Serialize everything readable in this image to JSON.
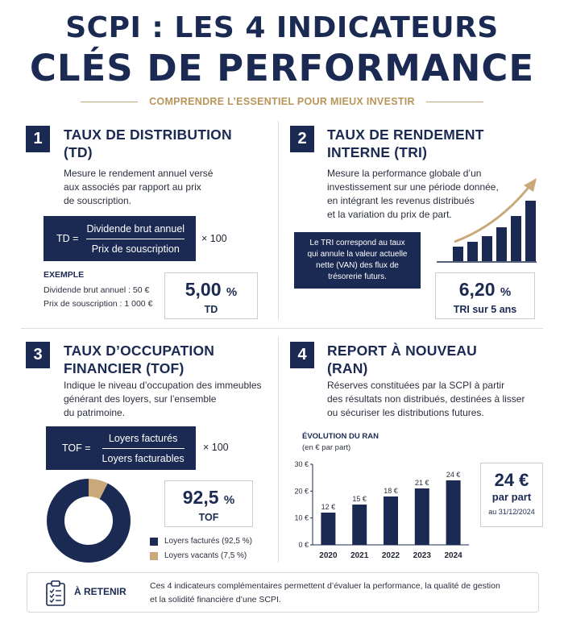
{
  "header": {
    "title_line1": "SCPI : LES 4 INDICATEURS",
    "title_line2": "CLÉS DE PERFORMANCE",
    "subtitle": "COMPRENDRE L’ESSENTIEL POUR MIEUX INVESTIR"
  },
  "colors": {
    "navy": "#1b2a52",
    "gold": "#c4a774",
    "occupied": "#1b2a52",
    "vacant": "#c9a97a"
  },
  "td": {
    "number": "1",
    "title_line1": "TAUX DE DISTRIBUTION",
    "title_line2": "(TD)",
    "desc_line1": "Mesure le rendement annuel versé",
    "desc_line2": "aux associés par rapport au prix",
    "desc_line3": "de souscription.",
    "formula_lhs": "TD =",
    "formula_num": "Dividende brut annuel",
    "formula_den": "Prix de souscription",
    "formula_times": "× 100",
    "example_title": "EXEMPLE",
    "example_line1": "Dividende brut annuel : 50 €",
    "example_line2": "Prix de souscription : 1 000 €",
    "value": "5,00",
    "unit": "%",
    "value_label": "TD"
  },
  "tri": {
    "number": "2",
    "title_line1": "TAUX DE RENDEMENT",
    "title_line2": "INTERNE (TRI)",
    "desc_line1": "Mesure la performance globale d’un",
    "desc_line2": "investissement sur une période donnée,",
    "desc_line3": "en intégrant les revenus distribués",
    "desc_line4": "et la variation du prix de part.",
    "note_line1": "Le TRI correspond au taux",
    "note_line2": "qui annule la valeur actuelle",
    "note_line3": "nette (VAN) des flux de",
    "note_line4": "trésorerie futurs.",
    "value": "6,20",
    "unit": "%",
    "value_label": "TRI sur 5 ans",
    "growth_icon": "growth-bars-arrow-icon"
  },
  "tof": {
    "number": "3",
    "title_line1": "TAUX D’OCCUPATION",
    "title_line2": "FINANCIER (TOF)",
    "desc_line1": "Indique le niveau d’occupation des immeubles",
    "desc_line2": "générant des loyers, sur l’ensemble",
    "desc_line3": "du patrimoine.",
    "formula_lhs": "TOF =",
    "formula_num": "Loyers facturés",
    "formula_den": "Loyers facturables",
    "formula_times": "× 100",
    "value": "92,5",
    "unit": "%",
    "value_label": "TOF",
    "legend_occupied": "Loyers facturés (92,5 %)",
    "legend_vacant": "Loyers vacants (7,5 %)",
    "occupied_pct": 92.5,
    "vacant_pct": 7.5
  },
  "ran": {
    "number": "4",
    "title_line1": "REPORT À NOUVEAU",
    "title_line2": "(RAN)",
    "desc_line1": "Réserves constituées par la SCPI à partir",
    "desc_line2": "des résultats non distribués, destinées à lisser",
    "desc_line3": "ou sécuriser les distributions futures.",
    "chart_title": "ÉVOLUTION DU RAN",
    "chart_unit": "(en € par part)",
    "value": "24 €",
    "value_label1": "par part",
    "value_label2": "au 31/12/2024"
  },
  "chart_data": {
    "type": "bar",
    "title": "ÉVOLUTION DU RAN",
    "subtitle": "(en € par part)",
    "categories": [
      "2020",
      "2021",
      "2022",
      "2023",
      "2024"
    ],
    "values": [
      12,
      15,
      18,
      21,
      24
    ],
    "value_labels": [
      "12 €",
      "15 €",
      "18 €",
      "21 €",
      "24 €"
    ],
    "yticks": [
      0,
      10,
      20,
      30
    ],
    "ytick_labels": [
      "0 €",
      "10 €",
      "20 €",
      "30 €"
    ],
    "ylim": [
      0,
      30
    ],
    "grid": false
  },
  "footer": {
    "icon": "clipboard-checklist-icon",
    "title": "À RETENIR",
    "text_line1": "Ces 4 indicateurs complémentaires permettent d’évaluer la performance, la qualité de gestion",
    "text_line2": "et la solidité financière d’une SCPI."
  }
}
